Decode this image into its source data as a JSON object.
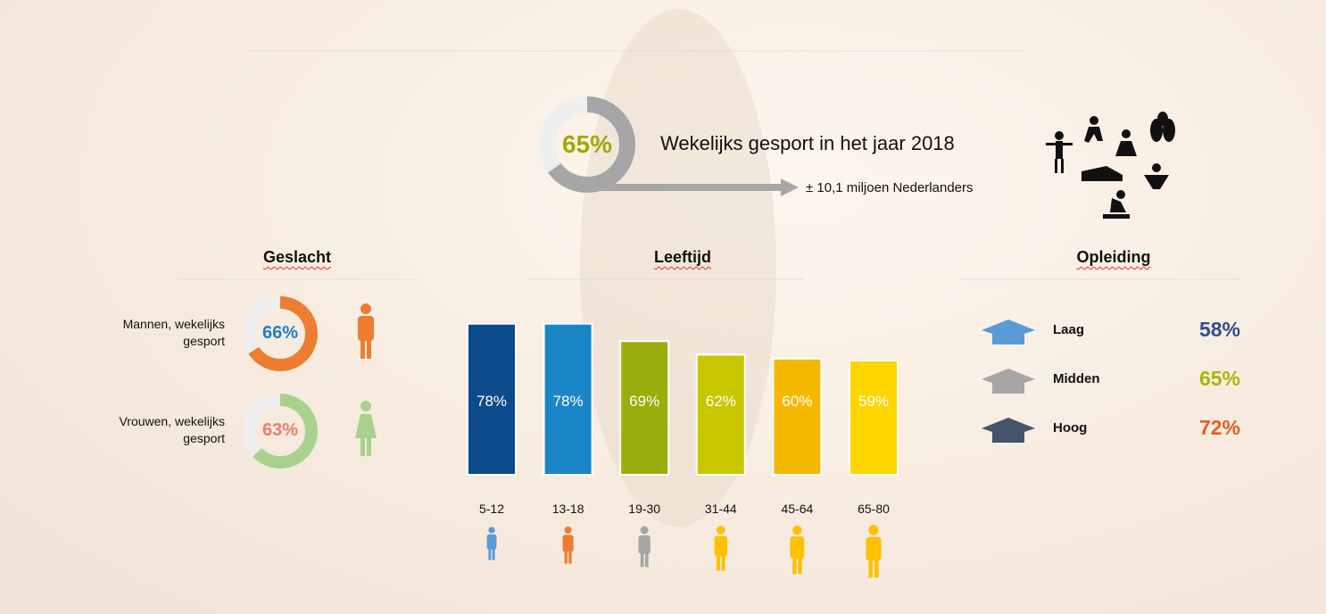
{
  "chart_data": [
    {
      "type": "donut",
      "title": "Wekelijks gesport in het jaar 2018",
      "annotation": "± 10,1 miljoen Nederlanders",
      "values": [
        65
      ],
      "value_labels": [
        "65%"
      ],
      "color": "#a6a6a6",
      "label_color": "#a3a800"
    },
    {
      "type": "donut",
      "title": "Geslacht",
      "categories": [
        "Mannen, wekelijks gesport",
        "Vrouwen, wekelijks gesport"
      ],
      "values": [
        66,
        63
      ],
      "value_labels": [
        "66%",
        "63%"
      ],
      "colors": [
        "#ed7d31",
        "#a9d18e"
      ],
      "label_colors": [
        "#1f7fc4",
        "#e8806a"
      ]
    },
    {
      "type": "bar",
      "title": "Leeftijd",
      "categories": [
        "5-12",
        "13-18",
        "19-30",
        "31-44",
        "45-64",
        "65-80"
      ],
      "values": [
        78,
        78,
        69,
        62,
        60,
        59
      ],
      "value_labels": [
        "78%",
        "78%",
        "69%",
        "62%",
        "60%",
        "59%"
      ],
      "colors": [
        "#0b4a8b",
        "#1a86c8",
        "#9aae0b",
        "#c9c700",
        "#f5b800",
        "#ffd500"
      ]
    },
    {
      "type": "list",
      "title": "Opleiding",
      "categories": [
        "Laag",
        "Midden",
        "Hoog"
      ],
      "values": [
        58,
        65,
        72
      ],
      "value_labels": [
        "58%",
        "65%",
        "72%"
      ],
      "colors": [
        "#2f4f8f",
        "#a5b800",
        "#e06020"
      ]
    }
  ]
}
